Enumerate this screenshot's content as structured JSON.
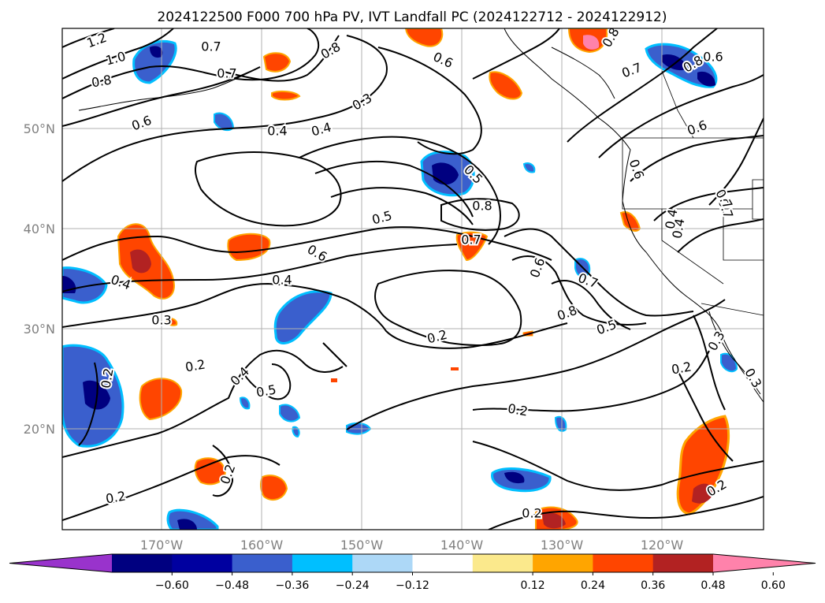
{
  "title": "2024122500 F000 700 hPa PV, IVT Landfall PC (2024122712 - 2024122912)",
  "map": {
    "lat_labels": [
      "50°N",
      "40°N",
      "30°N",
      "20°N"
    ],
    "lon_labels": [
      "170°W",
      "160°W",
      "150°W",
      "140°W",
      "130°W",
      "120°W"
    ],
    "grid": true,
    "contour_labels": [
      "1.2",
      "1.0",
      "0.8",
      "0.7",
      "0.8",
      "0.7",
      "0.6",
      "0.4",
      "0.4",
      "0.3",
      "0.6",
      "0.8",
      "0.7",
      "0.6",
      "0.5",
      "0.8",
      "0.7",
      "0.5",
      "0.6",
      "0.4",
      "0.4",
      "0.3",
      "0.2",
      "0.4",
      "0.5",
      "0.2",
      "0.6",
      "0.7",
      "0.8",
      "0.5",
      "0.2",
      "0.2",
      "0.2",
      "0.2",
      "0.2",
      "0.2",
      "0.2",
      "0.3",
      "0.4",
      "0.6",
      "0.6",
      "0.7",
      "0.3",
      "0.8",
      "0.4",
      "0.7"
    ]
  },
  "colorbar": {
    "ticks": [
      "−0.60",
      "−0.48",
      "−0.36",
      "−0.24",
      "−0.12",
      "0.12",
      "0.24",
      "0.36",
      "0.48",
      "0.60"
    ],
    "colors": [
      "#9933cc",
      "#000080",
      "#0000a0",
      "#3a5fcd",
      "#00bfff",
      "#add8f7",
      "#ffffff",
      "#fbe98c",
      "#ffa500",
      "#ff4500",
      "#b22222",
      "#ff82ab"
    ],
    "extend": "both"
  }
}
